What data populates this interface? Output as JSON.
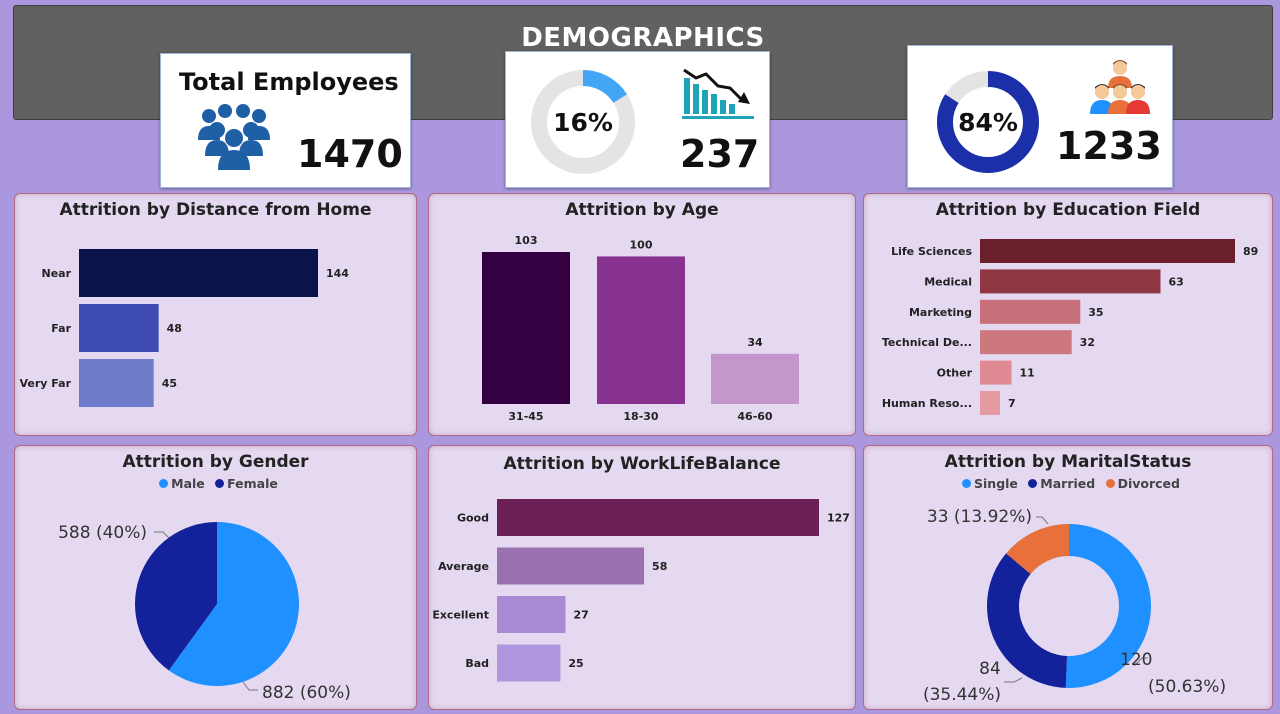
{
  "header": {
    "title": "DEMOGRAPHICS"
  },
  "kpis": {
    "total": {
      "label": "Total Employees",
      "value": "1470",
      "icon": "people-group-icon"
    },
    "attrition": {
      "percent_label": "16%",
      "percent": 0.16,
      "value": "237",
      "icon": "declining-chart-icon",
      "color": "#42a5f5"
    },
    "retained": {
      "percent_label": "84%",
      "percent": 0.84,
      "value": "1233",
      "icon": "team-icon",
      "color": "#1a2fa8"
    }
  },
  "chart_data": [
    {
      "id": "distance",
      "type": "bar",
      "orientation": "horizontal",
      "title": "Attrition by Distance from Home",
      "categories": [
        "Near",
        "Far",
        "Very Far"
      ],
      "values": [
        144,
        48,
        45
      ],
      "colors": [
        "#0b134d",
        "#3f4db3",
        "#6f7cc9"
      ]
    },
    {
      "id": "age",
      "type": "bar",
      "orientation": "vertical",
      "title": "Attrition by Age",
      "categories": [
        "31-45",
        "18-30",
        "46-60"
      ],
      "values": [
        103,
        100,
        34
      ],
      "colors": [
        "#350041",
        "#883290",
        "#c596cb"
      ]
    },
    {
      "id": "education",
      "type": "bar",
      "orientation": "horizontal",
      "title": "Attrition by Education Field",
      "categories": [
        "Life Sciences",
        "Medical",
        "Marketing",
        "Technical De...",
        "Other",
        "Human Reso..."
      ],
      "values": [
        89,
        63,
        35,
        32,
        11,
        7
      ],
      "colors": [
        "#6b1f2b",
        "#8f3843",
        "#c7707a",
        "#cd787f",
        "#e08a93",
        "#e59aa2"
      ]
    },
    {
      "id": "gender",
      "type": "pie",
      "title": "Attrition by Gender",
      "series": [
        {
          "name": "Male",
          "value": 882,
          "label": "882 (60%)",
          "color": "#1e90ff"
        },
        {
          "name": "Female",
          "value": 588,
          "label": "588 (40%)",
          "color": "#13219a"
        }
      ]
    },
    {
      "id": "worklife",
      "type": "bar",
      "orientation": "horizontal",
      "title": "Attrition by WorkLifeBalance",
      "categories": [
        "Good",
        "Average",
        "Excellent",
        "Bad"
      ],
      "values": [
        127,
        58,
        27,
        25
      ],
      "colors": [
        "#6b1f55",
        "#9a70b0",
        "#a98ad2",
        "#ae97de"
      ]
    },
    {
      "id": "marital",
      "type": "pie",
      "donut": true,
      "title": "Attrition by MaritalStatus",
      "series": [
        {
          "name": "Single",
          "value": 120,
          "label_value": "120",
          "label_pct": "(50.63%)",
          "color": "#1e90ff"
        },
        {
          "name": "Married",
          "value": 84,
          "label_value": "84",
          "label_pct": "(35.44%)",
          "color": "#13219a"
        },
        {
          "name": "Divorced",
          "value": 33,
          "label": "33 (13.92%)",
          "color": "#e8703a"
        }
      ]
    }
  ]
}
